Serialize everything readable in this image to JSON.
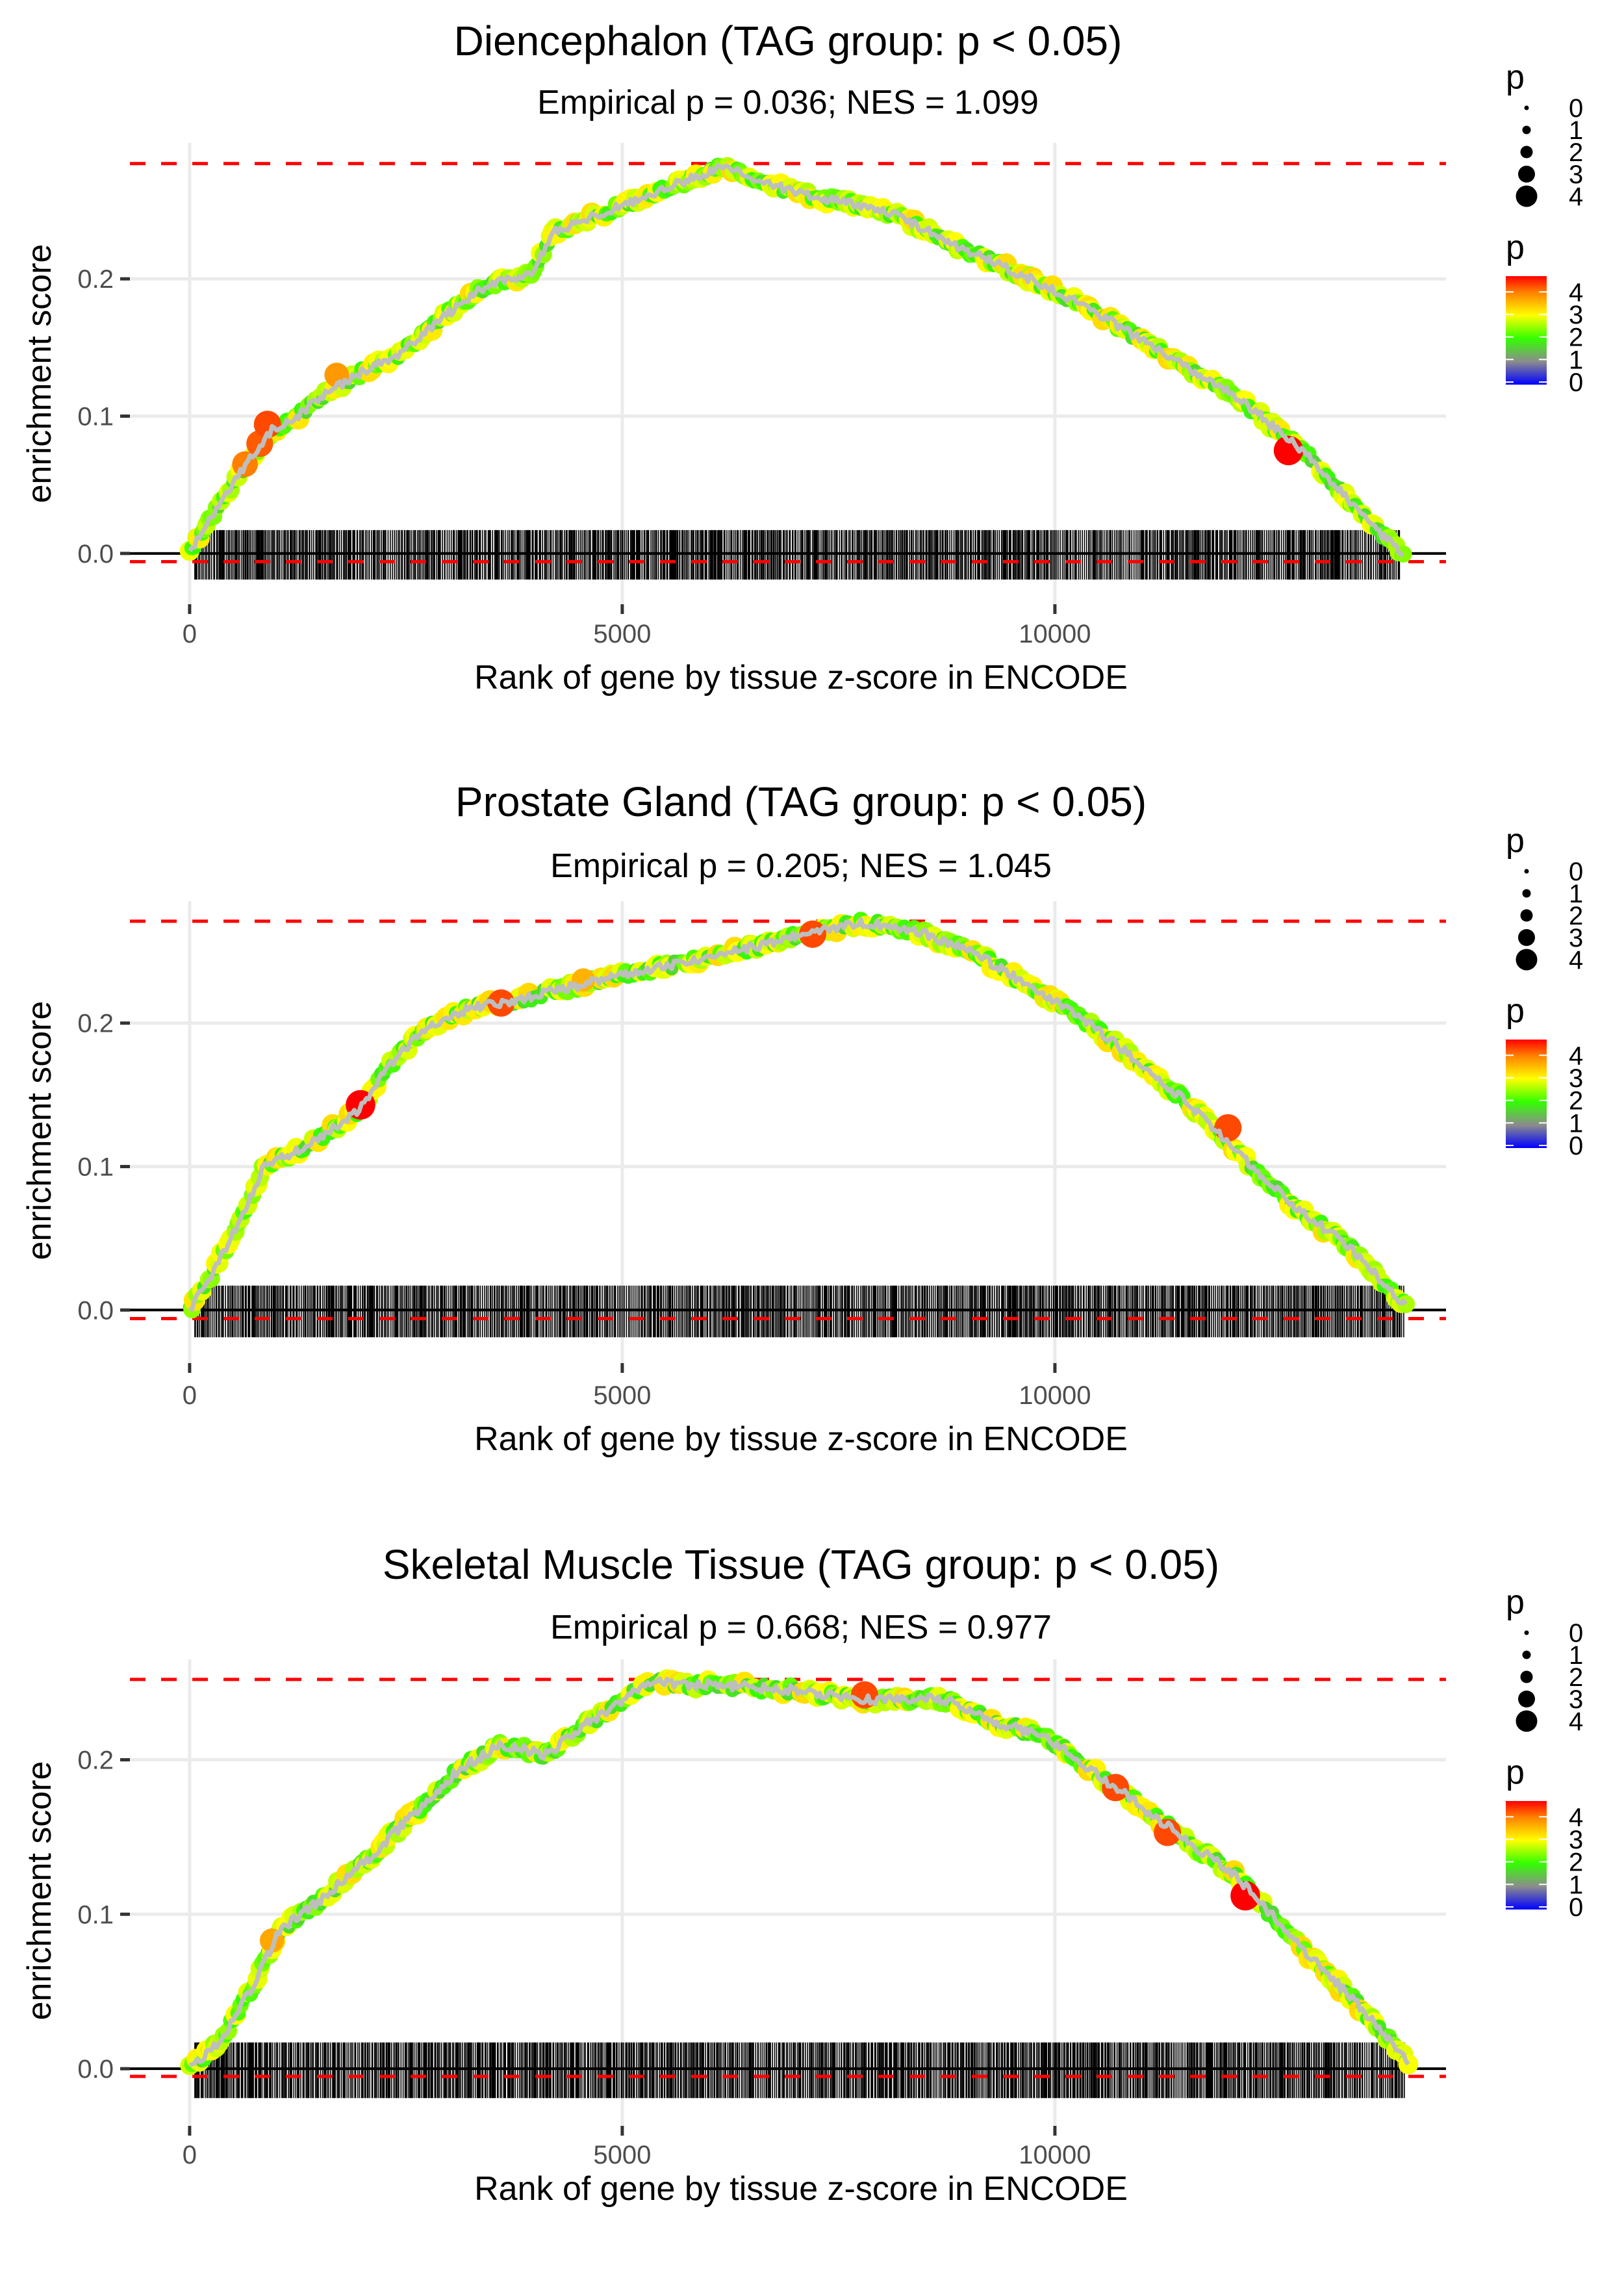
{
  "figure": {
    "legend": {
      "size_title": "p",
      "size_labels": [
        "0",
        "1",
        "2",
        "3",
        "4"
      ],
      "color_title": "p",
      "color_labels": [
        "4",
        "3",
        "2",
        "1",
        "0"
      ],
      "color_stops": [
        {
          "value": 0,
          "color": "#0000ff"
        },
        {
          "value": 1,
          "color": "#8c8c8c"
        },
        {
          "value": 2,
          "color": "#33ff00"
        },
        {
          "value": 3,
          "color": "#ffff00"
        },
        {
          "value": 4,
          "color": "#ff8000"
        },
        {
          "value": 4.7,
          "color": "#ff0000"
        }
      ]
    },
    "colors": {
      "grid": "#ebebeb",
      "curve_line": "#bebebe",
      "threshold_line": "#ff0000",
      "zero_line": "#000000",
      "rug": "#000000",
      "tick_text": "#4d4d4d"
    }
  },
  "chart_data": [
    {
      "type": "line",
      "title": "Diencephalon (TAG group: p < 0.05)",
      "subtitle": "Empirical p = 0.036; NES = 1.099",
      "xlabel": "Rank of gene by tissue z-score in ENCODE",
      "ylabel": "enrichment score",
      "xlim": [
        -690,
        14520
      ],
      "ylim": [
        -0.037,
        0.299
      ],
      "xticks": [
        0,
        5000,
        10000
      ],
      "xtick_labels": [
        "0",
        "5000",
        "10000"
      ],
      "yticks": [
        0.0,
        0.1,
        0.2
      ],
      "ytick_labels": [
        "0.0",
        "0.1",
        "0.2"
      ],
      "grid": true,
      "max_es_line": 0.284,
      "min_es_line": -0.006,
      "rug_range": [
        60,
        14000
      ],
      "curve": [
        [
          0,
          0
        ],
        [
          370,
          0.038
        ],
        [
          710,
          0.07
        ],
        [
          968,
          0.091
        ],
        [
          1226,
          0.099
        ],
        [
          1480,
          0.113
        ],
        [
          1900,
          0.129
        ],
        [
          2415,
          0.145
        ],
        [
          2930,
          0.172
        ],
        [
          3440,
          0.196
        ],
        [
          3950,
          0.204
        ],
        [
          4210,
          0.234
        ],
        [
          4975,
          0.253
        ],
        [
          5830,
          0.274
        ],
        [
          6170,
          0.282
        ],
        [
          6680,
          0.269
        ],
        [
          7360,
          0.258
        ],
        [
          8045,
          0.25
        ],
        [
          8900,
          0.223
        ],
        [
          9750,
          0.199
        ],
        [
          10430,
          0.177
        ],
        [
          11280,
          0.145
        ],
        [
          12130,
          0.113
        ],
        [
          12900,
          0.073
        ],
        [
          13500,
          0.032
        ],
        [
          14040,
          -0.003
        ]
      ],
      "highlight_points": [
        {
          "rank": 640,
          "es": 0.065,
          "p": 4.0
        },
        {
          "rank": 810,
          "es": 0.08,
          "p": 4.2
        },
        {
          "rank": 900,
          "es": 0.094,
          "p": 4.3
        },
        {
          "rank": 1700,
          "es": 0.13,
          "p": 3.8
        },
        {
          "rank": 12700,
          "es": 0.075,
          "p": 4.7
        }
      ],
      "legend": "right"
    },
    {
      "type": "line",
      "title": "Prostate Gland (TAG group: p < 0.05)",
      "subtitle": "Empirical p = 0.205; NES = 1.045",
      "xlabel": "Rank of gene by tissue z-score in ENCODE",
      "ylabel": "enrichment score",
      "xlim": [
        -690,
        14520
      ],
      "ylim": [
        -0.037,
        0.285
      ],
      "xticks": [
        0,
        5000,
        10000
      ],
      "xtick_labels": [
        "0",
        "5000",
        "10000"
      ],
      "yticks": [
        0.0,
        0.1,
        0.2
      ],
      "ytick_labels": [
        "0.0",
        "0.1",
        "0.2"
      ],
      "grid": true,
      "max_es_line": 0.271,
      "min_es_line": -0.006,
      "rug_range": [
        60,
        14050
      ],
      "curve": [
        [
          0,
          0
        ],
        [
          260,
          0.025
        ],
        [
          600,
          0.065
        ],
        [
          860,
          0.1
        ],
        [
          1370,
          0.115
        ],
        [
          1970,
          0.14
        ],
        [
          2300,
          0.17
        ],
        [
          2730,
          0.197
        ],
        [
          3240,
          0.21
        ],
        [
          3680,
          0.215
        ],
        [
          4260,
          0.223
        ],
        [
          4950,
          0.233
        ],
        [
          5800,
          0.243
        ],
        [
          6650,
          0.255
        ],
        [
          7330,
          0.265
        ],
        [
          7760,
          0.27
        ],
        [
          8360,
          0.265
        ],
        [
          9040,
          0.25
        ],
        [
          9720,
          0.225
        ],
        [
          10400,
          0.2
        ],
        [
          11430,
          0.15
        ],
        [
          12200,
          0.105
        ],
        [
          12800,
          0.07
        ],
        [
          13390,
          0.045
        ],
        [
          14070,
          0.002
        ]
      ],
      "highlight_points": [
        {
          "rank": 1975,
          "es": 0.143,
          "p": 4.7
        },
        {
          "rank": 3600,
          "es": 0.214,
          "p": 4.3
        },
        {
          "rank": 4550,
          "es": 0.23,
          "p": 3.6
        },
        {
          "rank": 7200,
          "es": 0.262,
          "p": 4.3
        },
        {
          "rank": 12000,
          "es": 0.127,
          "p": 4.3
        }
      ],
      "legend": "right"
    },
    {
      "type": "line",
      "title": "Skeletal Muscle Tissue (TAG group: p < 0.05)",
      "subtitle": "Empirical p = 0.668; NES = 0.977",
      "xlabel": "Rank of gene by tissue z-score in ENCODE",
      "ylabel": "enrichment score",
      "xlim": [
        -690,
        14520
      ],
      "ylim": [
        -0.037,
        0.265
      ],
      "xticks": [
        0,
        5000,
        10000
      ],
      "xtick_labels": [
        "0",
        "5000",
        "10000"
      ],
      "yticks": [
        0.0,
        0.1,
        0.2
      ],
      "ytick_labels": [
        "0.0",
        "0.1",
        "0.2"
      ],
      "grid": true,
      "max_es_line": 0.252,
      "min_es_line": -0.005,
      "rug_range": [
        60,
        14050
      ],
      "curve": [
        [
          0,
          0
        ],
        [
          370,
          0.019
        ],
        [
          710,
          0.052
        ],
        [
          1050,
          0.09
        ],
        [
          1480,
          0.108
        ],
        [
          2080,
          0.137
        ],
        [
          2590,
          0.165
        ],
        [
          3100,
          0.193
        ],
        [
          3610,
          0.21
        ],
        [
          4125,
          0.203
        ],
        [
          4550,
          0.222
        ],
        [
          5320,
          0.25
        ],
        [
          6170,
          0.248
        ],
        [
          7020,
          0.245
        ],
        [
          7880,
          0.239
        ],
        [
          8730,
          0.239
        ],
        [
          9240,
          0.226
        ],
        [
          9920,
          0.214
        ],
        [
          10770,
          0.179
        ],
        [
          11450,
          0.151
        ],
        [
          12130,
          0.123
        ],
        [
          12810,
          0.08
        ],
        [
          13500,
          0.042
        ],
        [
          14090,
          0.005
        ]
      ],
      "highlight_points": [
        {
          "rank": 950,
          "es": 0.083,
          "p": 3.7
        },
        {
          "rank": 7800,
          "es": 0.242,
          "p": 4.3
        },
        {
          "rank": 10700,
          "es": 0.182,
          "p": 4.3
        },
        {
          "rank": 11300,
          "es": 0.153,
          "p": 4.3
        },
        {
          "rank": 12200,
          "es": 0.112,
          "p": 4.7
        }
      ],
      "legend": "right"
    }
  ]
}
